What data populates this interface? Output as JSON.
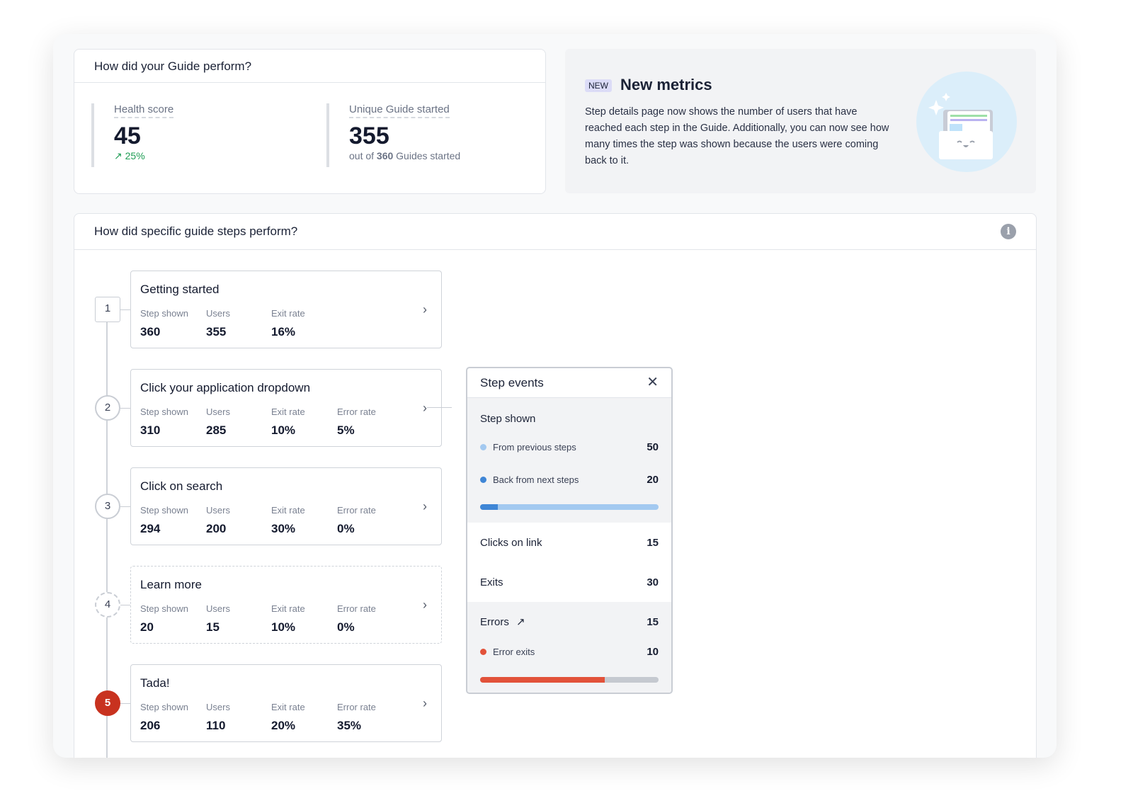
{
  "overview": {
    "title": "How did your Guide perform?",
    "health": {
      "label": "Health score",
      "value": "45",
      "trend": "25%"
    },
    "unique": {
      "label": "Unique Guide started",
      "value": "355",
      "sub_prefix": "out of",
      "sub_total": "360",
      "sub_suffix": "Guides started"
    }
  },
  "promo": {
    "badge": "NEW",
    "title": "New metrics",
    "text": "Step details page now shows the number of users that have reached each step in the Guide. Additionally, you can now see how many times the step was shown because the users were coming back to it."
  },
  "steps_section": {
    "title": "How did specific guide steps perform?",
    "labels": {
      "shown": "Step shown",
      "users": "Users",
      "exit": "Exit rate",
      "error": "Error rate"
    },
    "steps": [
      {
        "num": "1",
        "title": "Getting started",
        "shown": "360",
        "users": "355",
        "exit": "16%"
      },
      {
        "num": "2",
        "title": "Click your application dropdown",
        "shown": "310",
        "users": "285",
        "exit": "10%",
        "error": "5%"
      },
      {
        "num": "3",
        "title": "Click on search",
        "shown": "294",
        "users": "200",
        "exit": "30%",
        "error": "0%"
      },
      {
        "num": "4",
        "title": "Learn more",
        "shown": "20",
        "users": "15",
        "exit": "10%",
        "error": "0%"
      },
      {
        "num": "5",
        "title": "Tada!",
        "shown": "206",
        "users": "110",
        "exit": "20%",
        "error": "35%"
      }
    ]
  },
  "step_events": {
    "title": "Step events",
    "step_shown": "Step shown",
    "from_prev": {
      "label": "From previous steps",
      "value": "50"
    },
    "back_next": {
      "label": "Back from next steps",
      "value": "20"
    },
    "shown_bar_fraction": 0.1,
    "clicks": {
      "label": "Clicks on link",
      "value": "15"
    },
    "exits": {
      "label": "Exits",
      "value": "30"
    },
    "errors": {
      "label": "Errors",
      "value": "15"
    },
    "error_exits": {
      "label": "Error exits",
      "value": "10"
    },
    "error_bar_fraction": 0.7,
    "colors": {
      "light_blue": "#a3c9f0",
      "blue": "#3f86d6",
      "red": "#e2523a",
      "gray": "#c5c9d0"
    }
  }
}
